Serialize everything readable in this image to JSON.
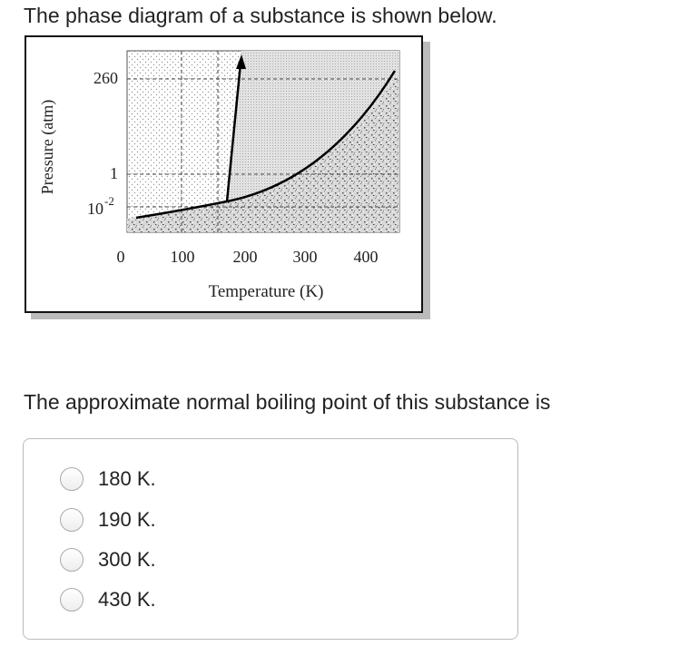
{
  "question": "The phase diagram of a substance is shown below.",
  "figure": {
    "y_label": "Pressure (atm)",
    "x_label": "Temperature (K)",
    "y_ticks": [
      {
        "text": "260"
      },
      {
        "text": "1"
      },
      {
        "text": "10",
        "superscript": "-2"
      }
    ],
    "x_ticks": [
      "0",
      "100",
      "200",
      "300",
      "400"
    ]
  },
  "prompt": "The approximate normal boiling point of this substance is",
  "options": [
    "180 K.",
    "190 K.",
    "300 K.",
    "430 K."
  ]
}
